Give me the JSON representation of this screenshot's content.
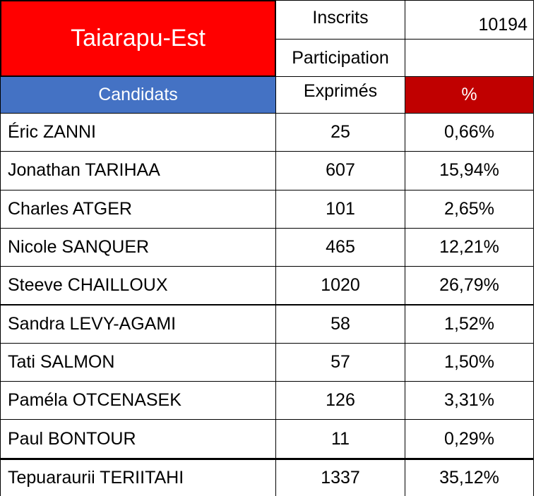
{
  "header": {
    "title": "Taiarapu-Est",
    "inscrits_label": "Inscrits",
    "inscrits_value": "10194",
    "participation_label": "Participation"
  },
  "table": {
    "columns": [
      "Candidats",
      "Exprimés",
      "%"
    ],
    "rows": [
      [
        "Éric ZANNI",
        "25",
        "0,66%"
      ],
      [
        "Jonathan TARIHAA",
        "607",
        "15,94%"
      ],
      [
        "Charles ATGER",
        "101",
        "2,65%"
      ],
      [
        "Nicole SANQUER",
        "465",
        "12,21%"
      ],
      [
        "Steeve CHAILLOUX",
        "1020",
        "26,79%"
      ],
      [
        "Sandra LEVY-AGAMI",
        "58",
        "1,52%"
      ],
      [
        "Tati SALMON",
        "57",
        "1,50%"
      ],
      [
        "Paméla OTCENASEK",
        "126",
        "3,31%"
      ],
      [
        "Paul BONTOUR",
        "11",
        "0,29%"
      ],
      [
        "Tepuaraurii TERIITAHI",
        "1337",
        "35,12%"
      ]
    ]
  }
}
